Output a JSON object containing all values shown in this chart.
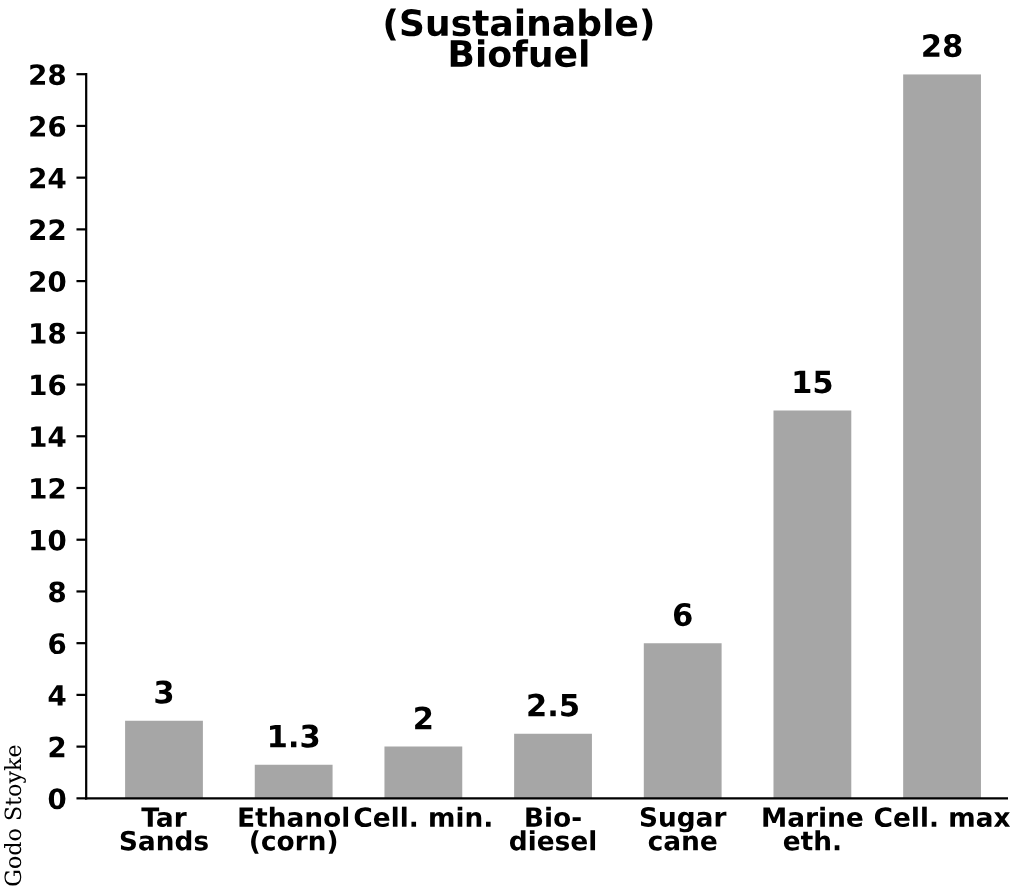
{
  "chart_data": {
    "type": "bar",
    "title": "(Sustainable)\nBiofuel",
    "categories": [
      "Tar\nSands",
      "Ethanol\n(corn)",
      "Cell. min.",
      "Bio-\ndiesel",
      "Sugar\ncane",
      "Marine\neth.",
      "Cell. max"
    ],
    "values": [
      3,
      1.3,
      2,
      2.5,
      6,
      15,
      28
    ],
    "color": "#a6a6a6",
    "ylim": [
      0,
      28
    ],
    "yticks": [
      0,
      2,
      4,
      6,
      8,
      10,
      12,
      14,
      16,
      18,
      20,
      22,
      24,
      26,
      28
    ],
    "data_labels": true,
    "grid": false,
    "annotations": [
      "Godo Stoyke"
    ]
  }
}
